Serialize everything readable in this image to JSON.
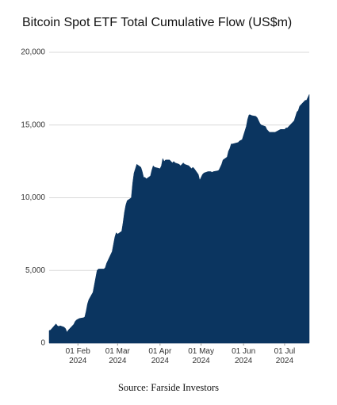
{
  "chart_data": {
    "type": "area",
    "title": "Bitcoin Spot ETF Total Cumulative Flow (US$m)",
    "source": "Source: Farside Investors",
    "color": "#0b3560",
    "grid": true,
    "ylim": [
      0,
      20000
    ],
    "yticks": [
      0,
      {
        "value": 5000,
        "label": "5,000"
      },
      {
        "value": 10000,
        "label": "10,000"
      },
      {
        "value": 15000,
        "label": "15,000"
      },
      {
        "value": 20000,
        "label": "20,000"
      }
    ],
    "xlim": [
      "2024-01-11",
      "2024-07-19"
    ],
    "xticks": [
      {
        "value": "2024-02-01",
        "label": "01 Feb 2024"
      },
      {
        "value": "2024-03-01",
        "label": "01 Mar 2024"
      },
      {
        "value": "2024-04-01",
        "label": "01 Apr 2024"
      },
      {
        "value": "2024-05-01",
        "label": "01 May 2024"
      },
      {
        "value": "2024-06-01",
        "label": "01 Jun 2024"
      },
      {
        "value": "2024-07-01",
        "label": "01 Jul 2024"
      }
    ],
    "x": [
      "2024-01-11",
      "2024-01-12",
      "2024-01-16",
      "2024-01-17",
      "2024-01-18",
      "2024-01-19",
      "2024-01-22",
      "2024-01-23",
      "2024-01-24",
      "2024-01-25",
      "2024-01-26",
      "2024-01-29",
      "2024-01-30",
      "2024-01-31",
      "2024-02-01",
      "2024-02-02",
      "2024-02-05",
      "2024-02-06",
      "2024-02-07",
      "2024-02-08",
      "2024-02-09",
      "2024-02-12",
      "2024-02-13",
      "2024-02-14",
      "2024-02-15",
      "2024-02-16",
      "2024-02-20",
      "2024-02-21",
      "2024-02-22",
      "2024-02-23",
      "2024-02-26",
      "2024-02-27",
      "2024-02-28",
      "2024-02-29",
      "2024-03-01",
      "2024-03-04",
      "2024-03-05",
      "2024-03-06",
      "2024-03-07",
      "2024-03-08",
      "2024-03-11",
      "2024-03-12",
      "2024-03-13",
      "2024-03-14",
      "2024-03-15",
      "2024-03-18",
      "2024-03-19",
      "2024-03-20",
      "2024-03-21",
      "2024-03-22",
      "2024-03-25",
      "2024-03-26",
      "2024-03-27",
      "2024-03-28",
      "2024-04-01",
      "2024-04-02",
      "2024-04-03",
      "2024-04-04",
      "2024-04-05",
      "2024-04-08",
      "2024-04-09",
      "2024-04-10",
      "2024-04-11",
      "2024-04-12",
      "2024-04-15",
      "2024-04-16",
      "2024-04-17",
      "2024-04-18",
      "2024-04-19",
      "2024-04-22",
      "2024-04-23",
      "2024-04-24",
      "2024-04-25",
      "2024-04-26",
      "2024-04-29",
      "2024-04-30",
      "2024-05-01",
      "2024-05-02",
      "2024-05-03",
      "2024-05-06",
      "2024-05-07",
      "2024-05-08",
      "2024-05-09",
      "2024-05-10",
      "2024-05-13",
      "2024-05-14",
      "2024-05-15",
      "2024-05-16",
      "2024-05-17",
      "2024-05-20",
      "2024-05-21",
      "2024-05-22",
      "2024-05-23",
      "2024-05-24",
      "2024-05-28",
      "2024-05-29",
      "2024-05-30",
      "2024-05-31",
      "2024-06-03",
      "2024-06-04",
      "2024-06-05",
      "2024-06-06",
      "2024-06-07",
      "2024-06-10",
      "2024-06-11",
      "2024-06-12",
      "2024-06-13",
      "2024-06-14",
      "2024-06-17",
      "2024-06-18",
      "2024-06-19",
      "2024-06-20",
      "2024-06-21",
      "2024-06-24",
      "2024-06-25",
      "2024-06-26",
      "2024-06-27",
      "2024-06-28",
      "2024-07-01",
      "2024-07-02",
      "2024-07-03",
      "2024-07-05",
      "2024-07-08",
      "2024-07-09",
      "2024-07-10",
      "2024-07-11",
      "2024-07-12",
      "2024-07-15",
      "2024-07-16",
      "2024-07-17",
      "2024-07-18",
      "2024-07-19"
    ],
    "values": [
      870,
      900,
      1330,
      1200,
      1150,
      1200,
      1100,
      1000,
      750,
      900,
      1000,
      1300,
      1500,
      1600,
      1650,
      1700,
      1750,
      1800,
      2200,
      2700,
      3000,
      3500,
      4000,
      4500,
      5000,
      5100,
      5100,
      5200,
      5500,
      5700,
      6300,
      6800,
      7300,
      7600,
      7500,
      7700,
      8300,
      9000,
      9500,
      9800,
      10000,
      11000,
      11700,
      12000,
      12300,
      12100,
      11800,
      11400,
      11400,
      11300,
      11500,
      11900,
      12200,
      12100,
      12000,
      12200,
      12700,
      12500,
      12600,
      12600,
      12500,
      12400,
      12500,
      12400,
      12300,
      12200,
      12300,
      12400,
      12300,
      12200,
      12100,
      12000,
      12100,
      12000,
      11600,
      11200,
      11400,
      11600,
      11700,
      11800,
      11800,
      11800,
      11750,
      11800,
      11850,
      11900,
      12100,
      12300,
      12600,
      12800,
      13200,
      13400,
      13700,
      13700,
      13800,
      13900,
      13950,
      14000,
      14900,
      15400,
      15700,
      15700,
      15650,
      15600,
      15500,
      15300,
      15100,
      15000,
      14900,
      14700,
      14600,
      14500,
      14500,
      14500,
      14550,
      14600,
      14650,
      14700,
      14700,
      14800,
      14800,
      15000,
      15300,
      15600,
      15900,
      16000,
      16300,
      16600,
      16700,
      16700,
      16900,
      17100
    ]
  }
}
